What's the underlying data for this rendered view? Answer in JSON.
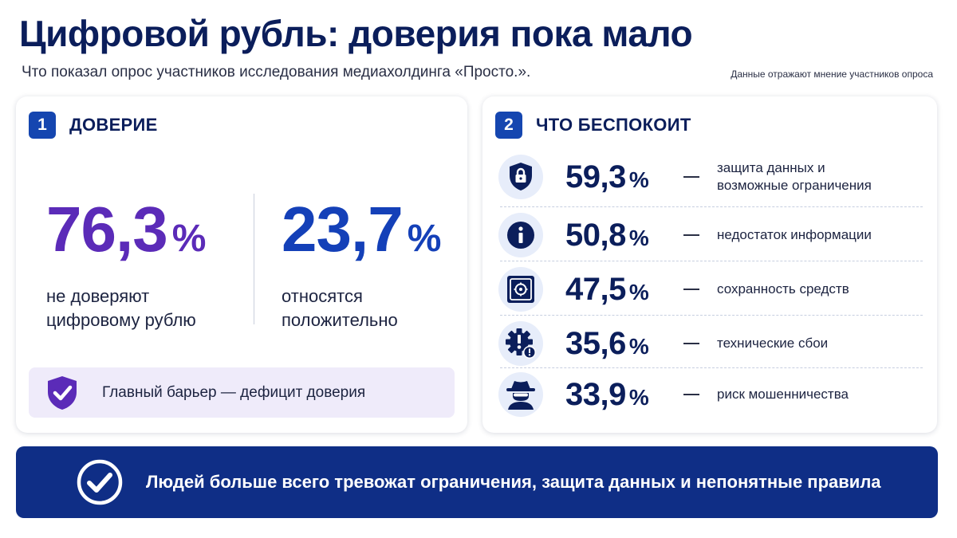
{
  "header": {
    "title": "Цифровой рубль: доверия пока мало",
    "subtitle": "Что показал опрос участников исследования медиахолдинга «Просто.».",
    "note": "Данные отражают мнение участников опроса"
  },
  "colors": {
    "primary": "#0b1e5b",
    "accent_blue": "#1440b8",
    "accent_purple": "#5b2bb8",
    "badge": "#1546b0",
    "banner": "#0f2e86",
    "barrier_bg": "#efebfa",
    "icon_bg": "#e7edfa"
  },
  "trust": {
    "number": "1",
    "title": "ДОВЕРИЕ",
    "stats": [
      {
        "value": "76,3",
        "unit": "%",
        "caption_line1": "не доверяют",
        "caption_line2": "цифровому рублю"
      },
      {
        "value": "23,7",
        "unit": "%",
        "caption_line1": "относятся",
        "caption_line2": "положительно"
      }
    ],
    "barrier": {
      "icon": "shield-check-icon",
      "text": "Главный барьер — дефицит доверия"
    }
  },
  "concerns": {
    "number": "2",
    "title": "ЧТО БЕСПОКОИТ",
    "items": [
      {
        "icon": "lock-shield-icon",
        "value": "59,3",
        "unit": "%",
        "line1": "защита данных и",
        "line2": "возможные ограничения"
      },
      {
        "icon": "info-icon",
        "value": "50,8",
        "unit": "%",
        "line1": "недостаток информации",
        "line2": ""
      },
      {
        "icon": "safe-icon",
        "value": "47,5",
        "unit": "%",
        "line1": "сохранность средств",
        "line2": ""
      },
      {
        "icon": "gear-alert-icon",
        "value": "35,6",
        "unit": "%",
        "line1": "технические сбои",
        "line2": ""
      },
      {
        "icon": "fraudster-icon",
        "value": "33,9",
        "unit": "%",
        "line1": "риск мошенничества",
        "line2": ""
      }
    ]
  },
  "banner": {
    "icon": "check-circle-icon",
    "text": "Людей больше всего тревожат ограничения, защита данных и непонятные правила"
  }
}
